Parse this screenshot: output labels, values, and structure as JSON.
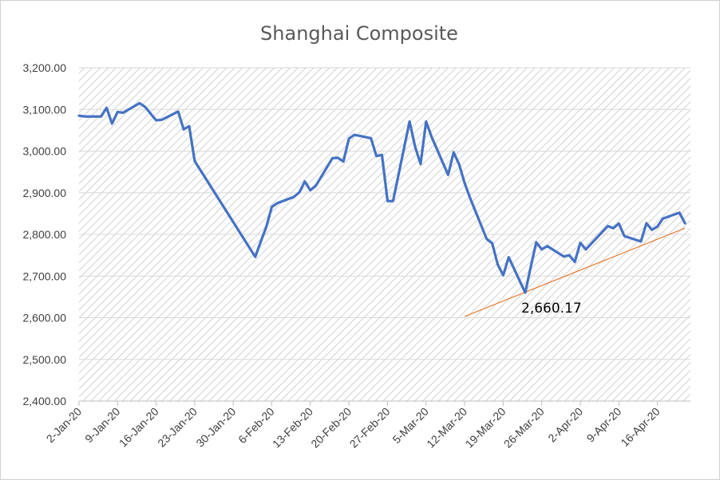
{
  "chart_data": {
    "type": "line",
    "title": "Shanghai Composite",
    "xlabel": "",
    "ylabel": "",
    "ylim": [
      2400,
      3200
    ],
    "ytick_labels": [
      "2,400.00",
      "2,500.00",
      "2,600.00",
      "2,700.00",
      "2,800.00",
      "2,900.00",
      "3,000.00",
      "3,100.00",
      "3,200.00"
    ],
    "ytick_values": [
      2400,
      2500,
      2600,
      2700,
      2800,
      2900,
      3000,
      3100,
      3200
    ],
    "xtick_labels": [
      "2-Jan-20",
      "9-Jan-20",
      "16-Jan-20",
      "23-Jan-20",
      "30-Jan-20",
      "6-Feb-20",
      "13-Feb-20",
      "20-Feb-20",
      "27-Feb-20",
      "5-Mar-20",
      "12-Mar-20",
      "19-Mar-20",
      "26-Mar-20",
      "2-Apr-20",
      "9-Apr-20",
      "16-Apr-20"
    ],
    "grid": true,
    "legend": "none",
    "series": [
      {
        "color": "#4472c4",
        "x": [
          "2020-01-02",
          "2020-01-03",
          "2020-01-06",
          "2020-01-07",
          "2020-01-08",
          "2020-01-09",
          "2020-01-10",
          "2020-01-13",
          "2020-01-14",
          "2020-01-15",
          "2020-01-16",
          "2020-01-17",
          "2020-01-20",
          "2020-01-21",
          "2020-01-22",
          "2020-01-23",
          "2020-02-03",
          "2020-02-04",
          "2020-02-05",
          "2020-02-06",
          "2020-02-07",
          "2020-02-10",
          "2020-02-11",
          "2020-02-12",
          "2020-02-13",
          "2020-02-14",
          "2020-02-17",
          "2020-02-18",
          "2020-02-19",
          "2020-02-20",
          "2020-02-21",
          "2020-02-24",
          "2020-02-25",
          "2020-02-26",
          "2020-02-27",
          "2020-02-28",
          "2020-03-02",
          "2020-03-03",
          "2020-03-04",
          "2020-03-05",
          "2020-03-06",
          "2020-03-09",
          "2020-03-10",
          "2020-03-11",
          "2020-03-12",
          "2020-03-13",
          "2020-03-16",
          "2020-03-17",
          "2020-03-18",
          "2020-03-19",
          "2020-03-20",
          "2020-03-23",
          "2020-03-24",
          "2020-03-25",
          "2020-03-26",
          "2020-03-27",
          "2020-03-30",
          "2020-03-31",
          "2020-04-01",
          "2020-04-02",
          "2020-04-03",
          "2020-04-07",
          "2020-04-08",
          "2020-04-09",
          "2020-04-10",
          "2020-04-13",
          "2020-04-14",
          "2020-04-15",
          "2020-04-16",
          "2020-04-17",
          "2020-04-20",
          "2020-04-21"
        ],
        "values": [
          3085,
          3083,
          3083,
          3104,
          3066,
          3094,
          3092,
          3115,
          3106,
          3090,
          3074,
          3075,
          3095,
          3052,
          3060,
          2976,
          2746,
          2783,
          2818,
          2866,
          2875,
          2890,
          2901,
          2927,
          2906,
          2917,
          2983,
          2984,
          2975,
          3030,
          3039,
          3031,
          2988,
          2991,
          2880,
          2880,
          3071,
          3011,
          2969,
          3071,
          3034,
          2943,
          2997,
          2968,
          2923,
          2887,
          2789,
          2779,
          2728,
          2702,
          2745,
          2660,
          2722,
          2781,
          2764,
          2772,
          2747,
          2750,
          2734,
          2780,
          2764,
          2820,
          2815,
          2826,
          2796,
          2783,
          2827,
          2811,
          2819,
          2838,
          2852,
          2827
        ]
      }
    ],
    "trendline": {
      "color": "#ed7d31",
      "x": [
        "2020-03-12",
        "2020-04-21"
      ],
      "values": [
        2603,
        2815
      ]
    },
    "annotation": "2,660.17"
  }
}
